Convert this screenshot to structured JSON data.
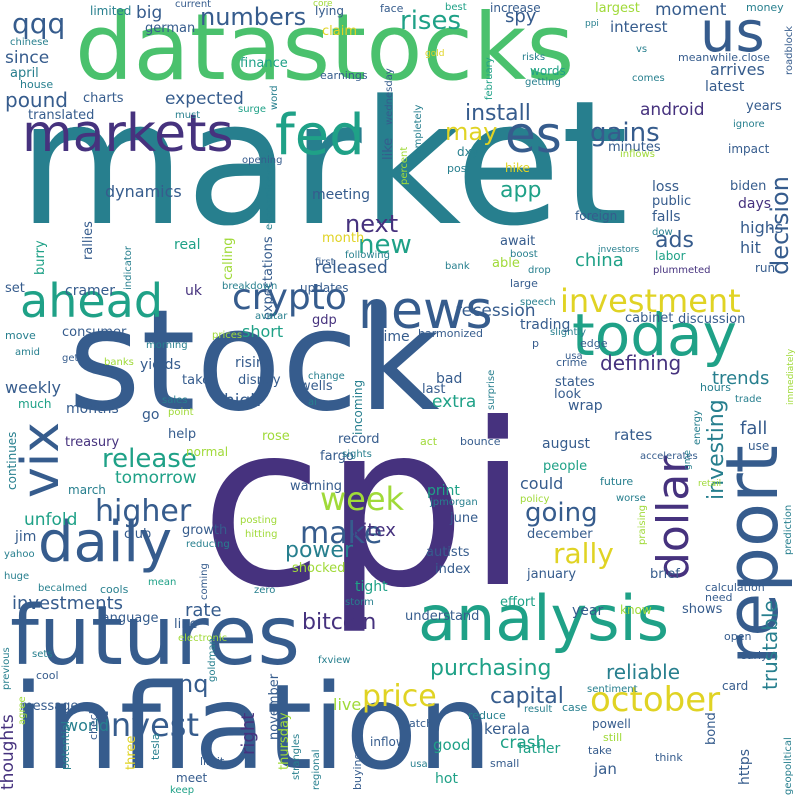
{
  "palette": {
    "indigo": "#46327e",
    "slate": "#365c8d",
    "teal_blue": "#277f8e",
    "teal": "#1fa187",
    "green": "#4ac16d",
    "lime": "#a0da39",
    "yellow": "#e0d324"
  },
  "words": {
    "market": "market",
    "cpi": "cpi",
    "stock": "stock",
    "inflation": "inflation",
    "datastocks": "datastocks",
    "futures": "futures",
    "markets": "markets",
    "report": "report",
    "analysis": "analysis",
    "daily": "daily",
    "news": "news",
    "today": "today",
    "ahead": "ahead",
    "fed": "fed",
    "es": "es",
    "us": "us",
    "vix": "vix",
    "dollar": "dollar",
    "crypto": "crypto",
    "investment": "investment",
    "higher": "higher",
    "week": "week",
    "invest": "invest",
    "october": "october",
    "release": "release",
    "make": "make",
    "price": "price",
    "new": "new",
    "qqq": "qqq",
    "numbers": "numbers",
    "rises": "rises",
    "gains": "gains",
    "going": "going",
    "rally": "rally",
    "purchasing": "purchasing",
    "decision": "decision",
    "investing": "investing",
    "trustable": "trustable",
    "reliable": "reliable",
    "bitcoin": "bitcoin",
    "power": "power",
    "nq": "nq",
    "capital": "capital",
    "may": "may",
    "next": "next",
    "app": "app",
    "china": "china",
    "ads": "ads",
    "kitex": "kitex",
    "recession": "recession",
    "released": "released",
    "defining": "defining",
    "trends": "trends",
    "install": "install",
    "android": "android",
    "moment": "moment",
    "arrives": "arrives",
    "expected": "expected",
    "pound": "pound",
    "since": "since",
    "tomorrow": "tomorrow",
    "investments": "investments",
    "unfold": "unfold",
    "rate": "rate",
    "weekly": "weekly",
    "dynamics": "dynamics",
    "high": "high",
    "short": "short",
    "extra": "extra",
    "fall": "fall",
    "rates": "rates",
    "crash": "crash",
    "live": "live",
    "world": "world",
    "thoughts": "thoughts",
    "right": "right",
    "tight": "tight",
    "big": "big",
    "interest": "interest",
    "install2": "install",
    "largest": "largest",
    "latest": "latest",
    "spy": "spy",
    "limited": "limited",
    "charts": "charts",
    "translated": "translated",
    "house": "house",
    "april": "april",
    "finance": "finance",
    "german": "german",
    "current": "current",
    "lying": "lying",
    "core": "core",
    "face": "face",
    "best": "best",
    "increase": "increase",
    "money": "money",
    "ppi": "ppi",
    "chinese": "chinese",
    "claim": "claim",
    "gold": "gold",
    "earnings": "earnings",
    "february": "february",
    "risks": "risks",
    "words": "words",
    "getting": "getting",
    "vs": "vs",
    "meanwhile_close": "meanwhile.close",
    "comes": "comes",
    "years": "years",
    "ignore": "ignore",
    "impact": "impact",
    "biden": "biden",
    "days": "days",
    "highs": "highs",
    "hit": "hit",
    "run": "run",
    "loss": "loss",
    "public": "public",
    "falls": "falls",
    "labor": "labor",
    "plummeted": "plummeted",
    "foreign": "foreign",
    "await": "await",
    "able": "able",
    "boost": "boost",
    "drop": "drop",
    "investors": "investors",
    "hike": "hike",
    "post": "post",
    "dxy": "dxy",
    "minutes": "minutes",
    "like": "like",
    "month": "month",
    "following": "following",
    "first": "first",
    "bank": "bank",
    "large": "large",
    "meeting": "meeting",
    "expectations": "expectations",
    "calling": "calling",
    "real": "real",
    "updates": "updates",
    "gdp": "gdp",
    "uk": "uk",
    "speech": "speech",
    "cramer": "cramer",
    "set": "set",
    "burry": "burry",
    "rallies": "rallies",
    "consumer": "consumer",
    "move": "move",
    "amid": "amid",
    "get": "get",
    "much": "much",
    "months": "months",
    "treasury": "treasury",
    "continues": "continues",
    "go": "go",
    "help": "help",
    "normal": "normal",
    "rose": "rose",
    "rising": "rising",
    "takes": "takes",
    "yields": "yields",
    "disney": "disney",
    "wells": "wells",
    "fargo": "fargo",
    "incoming": "incoming",
    "bad": "bad",
    "last": "last",
    "look": "look",
    "states": "states",
    "wrap": "wrap",
    "record": "record",
    "sights": "sights",
    "august": "august",
    "people": "people",
    "could": "could",
    "future": "future",
    "march": "march",
    "club": "club",
    "growth": "growth",
    "jim": "jim",
    "yahoo": "yahoo",
    "huge": "huge",
    "reducing": "reducing",
    "warning": "warning",
    "shocked": "shocked",
    "print": "print",
    "jpmorgan": "jpmorgan",
    "june": "june",
    "december": "december",
    "autists": "autists",
    "index": "index",
    "january": "january",
    "brief": "brief",
    "zero": "zero",
    "storm": "storm",
    "understand": "understand",
    "effort": "effort",
    "year": "year",
    "know": "know",
    "shows": "shows",
    "language": "language",
    "line": "line",
    "electronic": "electronic",
    "cools": "cools",
    "mean": "mean",
    "becalmed": "becalmed",
    "sets": "sets",
    "cool": "cool",
    "message": "message",
    "previous": "previous",
    "agree": "agree",
    "potential": "potential",
    "check": "check",
    "three": "three",
    "tesla": "tesla",
    "meet": "meet",
    "keep": "keep",
    "limit": "limit",
    "strangles": "strangles",
    "november": "november",
    "thursday": "thursday",
    "fxview": "fxview",
    "regional": "regional",
    "buying": "buying",
    "inflow": "inflow",
    "good": "good",
    "watch": "watch",
    "reduce": "reduce",
    "usa": "usa",
    "kerala": "kerala",
    "father": "father",
    "small": "small",
    "hot": "hot",
    "jan": "jan",
    "result": "result",
    "case": "case",
    "powell": "powell",
    "still": "still",
    "take": "take",
    "think": "think",
    "bond": "bond",
    "https": "https",
    "sentiment": "sentiment",
    "card": "card",
    "open": "open",
    "early": "early",
    "geopolitical": "geopolitical",
    "need": "need",
    "calculation": "calculation",
    "prediction": "prediction",
    "energy": "energy",
    "trade": "trade",
    "hours": "hours",
    "immediately": "immediately",
    "roadblock": "roadblock",
    "retail": "retail",
    "worse": "worse",
    "policy": "policy",
    "bounce": "bounce",
    "act": "act",
    "crime": "crime",
    "edge": "edge",
    "slightly": "slightly",
    "usa2": "usa",
    "cabinet": "cabinet",
    "discussion": "discussion",
    "harmonized": "harmonized",
    "trading": "trading",
    "time": "time",
    "p": "p",
    "sales": "sales",
    "point": "point",
    "change": "change",
    "ai": "ai",
    "surprise": "surprise",
    "accelerates": "accelerates",
    "praising": "praising",
    "gme": "gme",
    "dow": "dow",
    "inflows": "inflows",
    "percent": "percent",
    "completely": "completely",
    "economicevents": "economicevents",
    "opening": "opening",
    "breakdown": "breakdown",
    "prices": "prices",
    "avatar": "avatar",
    "morning": "morning",
    "banks": "banks",
    "posting": "posting",
    "hitting": "hitting",
    "coming": "coming",
    "goldman": "goldman",
    "indicator": "indicator",
    "must": "must",
    "surge": "surge",
    "word": "word",
    "wednesday": "wednesday",
    "use": "use"
  }
}
